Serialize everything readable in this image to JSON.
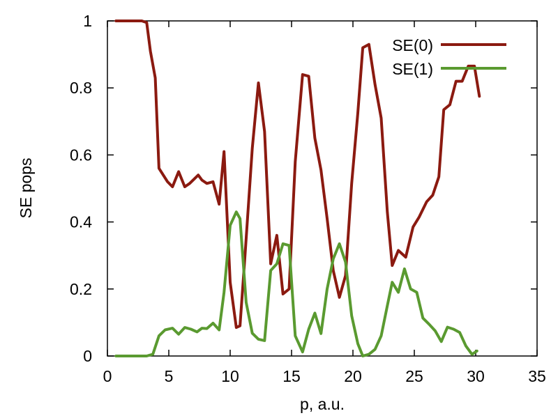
{
  "chart_data": {
    "type": "line",
    "xlabel": "p, a.u.",
    "ylabel": "SE pops",
    "xlim": [
      0,
      35
    ],
    "ylim": [
      0,
      1
    ],
    "xticks": [
      0,
      5,
      10,
      15,
      20,
      25,
      30,
      35
    ],
    "yticks": [
      0,
      0.2,
      0.4,
      0.6,
      0.8,
      1
    ],
    "xtick_labels": [
      "0",
      "5",
      "10",
      "15",
      "20",
      "25",
      "30",
      "35"
    ],
    "ytick_labels": [
      "0",
      "0.2",
      "0.4",
      "0.6",
      "0.8",
      "1"
    ],
    "grid": false,
    "legend_position": "top-right",
    "series": [
      {
        "name": "SE(0)",
        "color": "#8b1a10",
        "x": [
          0.7,
          1.4,
          2.1,
          2.8,
          3.2,
          3.5,
          3.9,
          4.2,
          4.9,
          5.3,
          5.8,
          6.3,
          6.7,
          7.4,
          7.7,
          8.1,
          8.6,
          9.1,
          9.5,
          10.0,
          10.5,
          10.8,
          11.2,
          11.8,
          12.3,
          12.8,
          13.3,
          13.8,
          14.3,
          14.8,
          15.3,
          15.9,
          16.4,
          16.9,
          17.4,
          17.9,
          18.4,
          18.9,
          19.4,
          19.9,
          20.4,
          20.8,
          21.3,
          21.8,
          22.3,
          22.8,
          23.2,
          23.7,
          24.3,
          24.9,
          25.4,
          26.0,
          26.5,
          27.0,
          27.4,
          27.9,
          28.4,
          28.9,
          29.4,
          29.9,
          30.3
        ],
        "y": [
          1.0,
          1.0,
          1.0,
          1.0,
          0.995,
          0.91,
          0.83,
          0.56,
          0.52,
          0.505,
          0.55,
          0.505,
          0.515,
          0.54,
          0.525,
          0.515,
          0.52,
          0.453,
          0.61,
          0.22,
          0.085,
          0.09,
          0.295,
          0.62,
          0.815,
          0.67,
          0.275,
          0.36,
          0.185,
          0.2,
          0.58,
          0.84,
          0.835,
          0.65,
          0.555,
          0.41,
          0.255,
          0.175,
          0.24,
          0.515,
          0.725,
          0.92,
          0.93,
          0.81,
          0.71,
          0.43,
          0.27,
          0.315,
          0.295,
          0.385,
          0.415,
          0.46,
          0.48,
          0.535,
          0.735,
          0.75,
          0.82,
          0.82,
          0.865,
          0.865,
          0.775
        ]
      },
      {
        "name": "SE(1)",
        "color": "#5a9a30",
        "x": [
          0.7,
          1.4,
          2.1,
          2.8,
          3.2,
          3.7,
          4.2,
          4.7,
          5.3,
          5.8,
          6.3,
          6.8,
          7.3,
          7.7,
          8.1,
          8.6,
          9.1,
          9.5,
          10.0,
          10.5,
          10.8,
          11.3,
          11.8,
          12.3,
          12.8,
          13.3,
          13.8,
          14.3,
          14.8,
          15.3,
          15.9,
          16.4,
          16.9,
          17.4,
          17.9,
          18.4,
          18.9,
          19.4,
          19.9,
          20.4,
          20.8,
          21.3,
          21.8,
          22.3,
          22.8,
          23.2,
          23.7,
          24.2,
          24.7,
          25.2,
          25.7,
          26.2,
          26.7,
          27.2,
          27.7,
          28.2,
          28.7,
          29.2,
          29.7,
          30.1
        ],
        "y": [
          0.0,
          0.0,
          0.0,
          0.0,
          0.0,
          0.005,
          0.06,
          0.078,
          0.083,
          0.065,
          0.085,
          0.08,
          0.072,
          0.083,
          0.082,
          0.098,
          0.078,
          0.19,
          0.39,
          0.43,
          0.41,
          0.16,
          0.068,
          0.05,
          0.046,
          0.255,
          0.275,
          0.335,
          0.33,
          0.06,
          0.012,
          0.08,
          0.128,
          0.067,
          0.2,
          0.29,
          0.335,
          0.28,
          0.12,
          0.037,
          0.0,
          0.005,
          0.02,
          0.06,
          0.15,
          0.22,
          0.19,
          0.26,
          0.2,
          0.19,
          0.113,
          0.095,
          0.075,
          0.043,
          0.086,
          0.08,
          0.07,
          0.03,
          0.005,
          0.015
        ]
      }
    ]
  }
}
